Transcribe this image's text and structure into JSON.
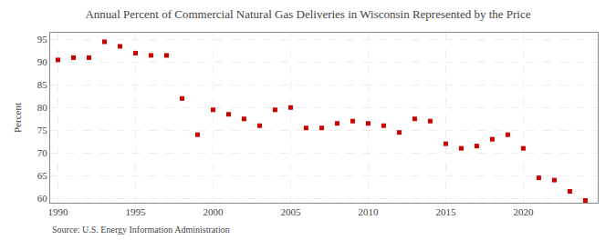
{
  "chart_data": {
    "type": "scatter",
    "title": "Annual Percent of Commercial Natural Gas Deliveries in Wisconsin Represented by the Price",
    "ylabel": "Percent",
    "annotations": [
      "Source: U.S. Energy Information Administration"
    ],
    "x": [
      1990,
      1991,
      1992,
      1993,
      1994,
      1995,
      1996,
      1997,
      1998,
      1999,
      2000,
      2001,
      2002,
      2003,
      2004,
      2005,
      2006,
      2007,
      2008,
      2009,
      2010,
      2011,
      2012,
      2013,
      2014,
      2015,
      2016,
      2017,
      2018,
      2019,
      2020,
      2021,
      2022,
      2023,
      2024
    ],
    "values": [
      90.5,
      91.0,
      91.0,
      94.5,
      93.5,
      92.0,
      91.5,
      91.5,
      82.0,
      74.0,
      79.5,
      78.5,
      77.5,
      76.0,
      79.5,
      80.0,
      75.5,
      75.5,
      76.5,
      77.0,
      76.5,
      76.0,
      74.5,
      77.5,
      77.0,
      72.0,
      71.0,
      71.5,
      73.0,
      74.0,
      71.0,
      64.5,
      64.0,
      61.5,
      59.5
    ],
    "color": "#cc0000",
    "marker": "square",
    "xlim": [
      1989.5,
      2024.8
    ],
    "xticks": [
      1990,
      1995,
      2000,
      2005,
      2010,
      2015,
      2020
    ],
    "ylim": [
      59,
      96.5
    ],
    "yticks": [
      60,
      65,
      70,
      75,
      80,
      85,
      90,
      95
    ],
    "grid": true
  }
}
